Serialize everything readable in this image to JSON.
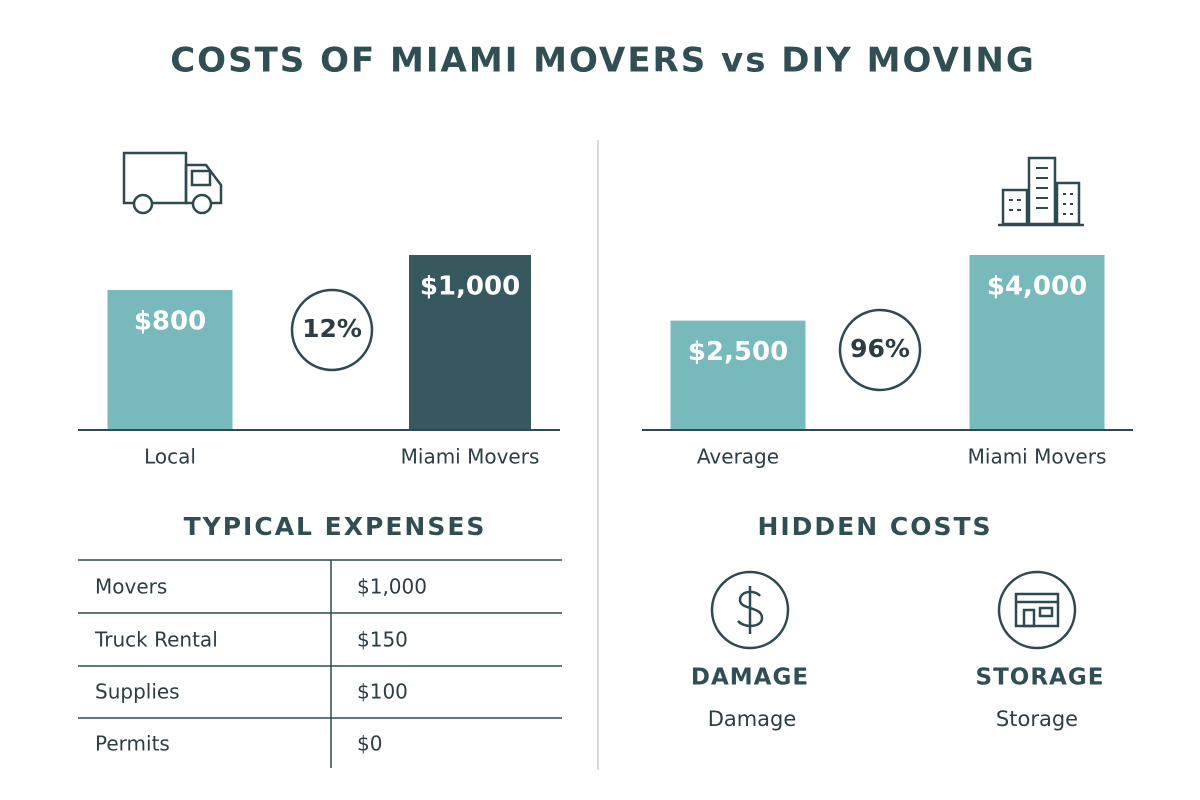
{
  "title": "COSTS OF MIAMI MOVERS vs DIY MOVING",
  "chart_data": [
    {
      "type": "bar",
      "categories": [
        "Local",
        "Miami Movers"
      ],
      "values": [
        800,
        1000
      ],
      "value_labels": [
        "$800",
        "$1,000"
      ],
      "colors": [
        "#78b9bb",
        "#37585e"
      ],
      "badge": "12%"
    },
    {
      "type": "bar",
      "categories": [
        "Average",
        "Miami Movers"
      ],
      "values": [
        2500,
        4000
      ],
      "value_labels": [
        "$2,500",
        "$4,000"
      ],
      "colors": [
        "#78b9bb",
        "#78b9bb"
      ],
      "badge": "96%"
    }
  ],
  "table": {
    "title": "TYPICAL EXPENSES",
    "rows": [
      [
        "Movers",
        "$1,000"
      ],
      [
        "Truck Rental",
        "$150"
      ],
      [
        "Supplies",
        "$100"
      ],
      [
        "Permits",
        "$0"
      ]
    ]
  },
  "hidden_costs": {
    "title": "HIDDEN COSTS",
    "items": [
      {
        "heading": "DAMAGE",
        "label": "Damage"
      },
      {
        "heading": "STORAGE",
        "label": "Storage"
      }
    ]
  }
}
